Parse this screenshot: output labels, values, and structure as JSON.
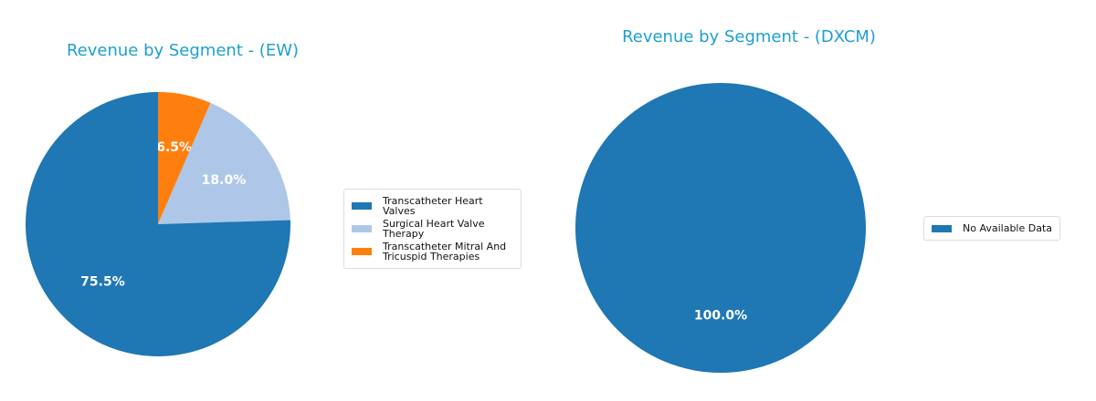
{
  "chart_data": [
    {
      "type": "pie",
      "title": "Revenue by Segment - (EW)",
      "labels": [
        "Transcatheter Heart Valves",
        "Surgical Heart Valve Therapy",
        "Transcatheter Mitral And Tricuspid Therapies"
      ],
      "legend_lines": [
        [
          "Transcatheter Heart Valves"
        ],
        [
          "Surgical Heart Valve",
          "Therapy"
        ],
        [
          "Transcatheter Mitral And",
          "Tricuspid Therapies"
        ]
      ],
      "values": [
        75.5,
        18.0,
        6.5
      ],
      "pct_labels": [
        "75.5%",
        "18.0%",
        "6.5%"
      ],
      "colors": [
        "#1f77b4",
        "#aec7e8",
        "#ff7f0e"
      ],
      "legend": "right"
    },
    {
      "type": "pie",
      "title": "Revenue by Segment - (DXCM)",
      "labels": [
        "No Available Data"
      ],
      "legend_lines": [
        [
          "No Available Data"
        ]
      ],
      "values": [
        100.0
      ],
      "pct_labels": [
        "100.0%"
      ],
      "colors": [
        "#1f77b4"
      ],
      "legend": "right"
    }
  ]
}
